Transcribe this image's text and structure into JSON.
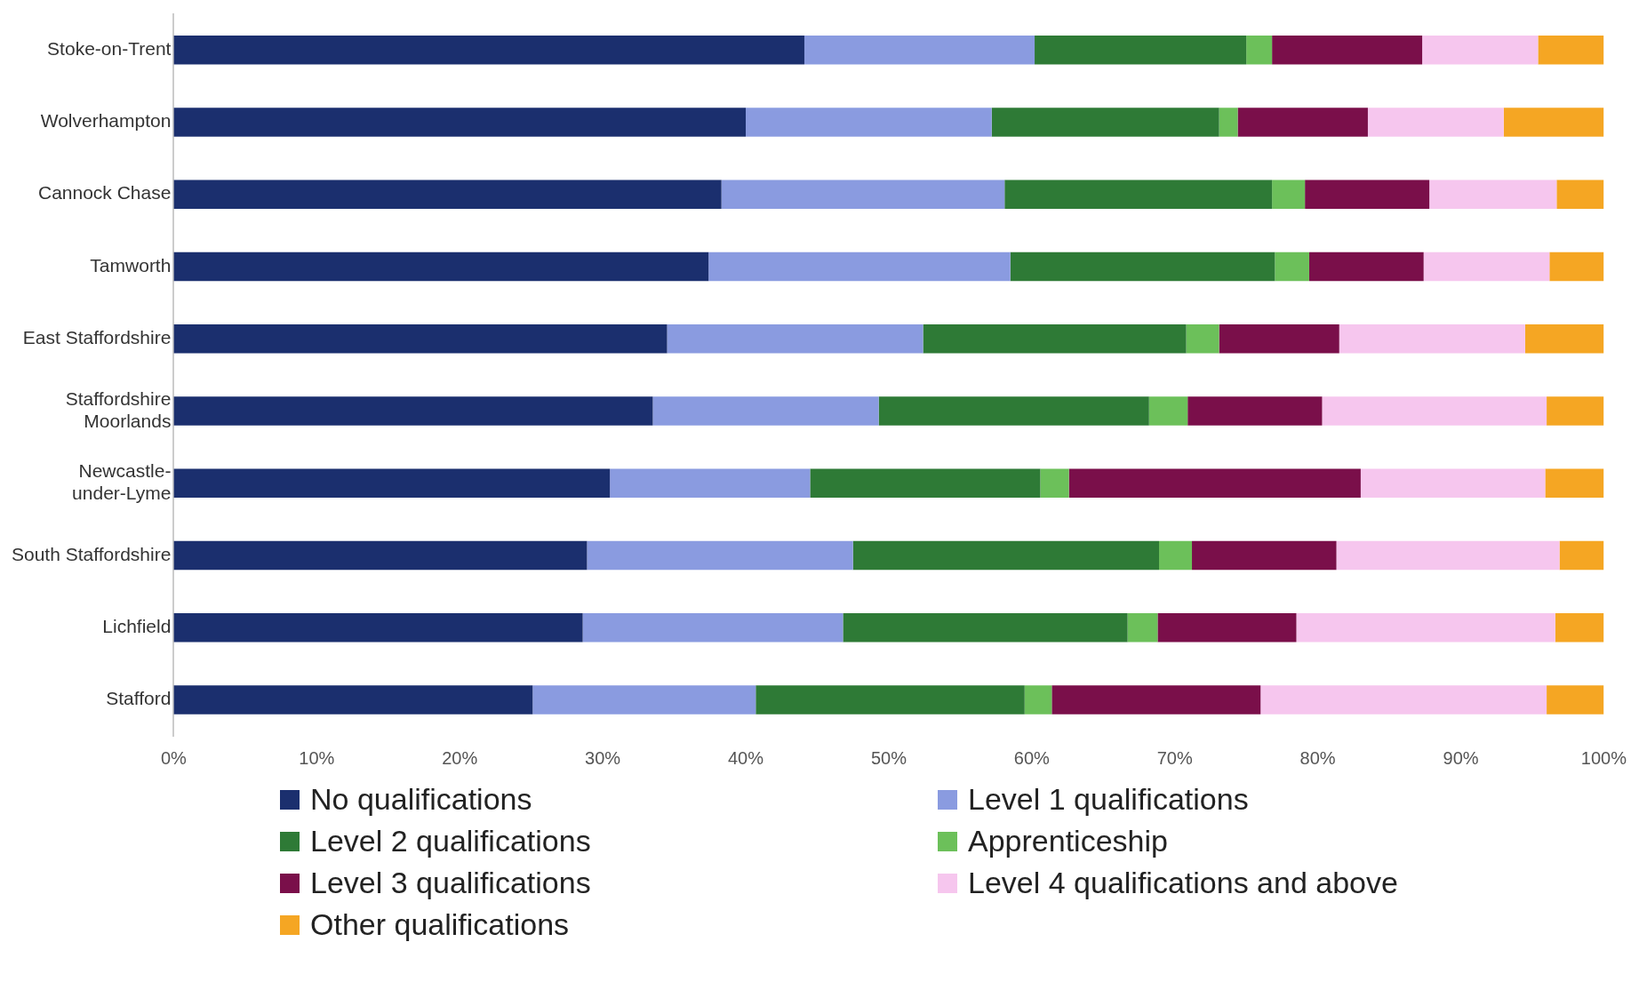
{
  "chart_data": {
    "type": "bar",
    "orientation": "horizontal",
    "stacked": true,
    "grid": false,
    "legend": "bottom",
    "categories": [
      "Stoke-on-Trent",
      "Wolverhampton",
      "Cannock Chase",
      "Tamworth",
      "East Staffordshire",
      "Staffordshire Moorlands",
      "Newcastle-under-Lyme",
      "South Staffordshire",
      "Lichfield",
      "Stafford"
    ],
    "xlim": [
      0,
      100
    ],
    "xticks": [
      {
        "value": 0,
        "label": "0%"
      },
      {
        "value": 10,
        "label": "10%"
      },
      {
        "value": 20,
        "label": "20%"
      },
      {
        "value": 30,
        "label": "30%"
      },
      {
        "value": 40,
        "label": "40%"
      },
      {
        "value": 50,
        "label": "50%"
      },
      {
        "value": 60,
        "label": "60%"
      },
      {
        "value": 70,
        "label": "70%"
      },
      {
        "value": 80,
        "label": "80%"
      },
      {
        "value": 90,
        "label": "90%"
      },
      {
        "value": 100,
        "label": "100%"
      }
    ],
    "series": [
      {
        "name": "No qualifications",
        "color": "#1b2f6e",
        "values": [
          44.1,
          40.0,
          38.3,
          37.4,
          34.5,
          33.5,
          30.5,
          28.9,
          28.6,
          25.1
        ]
      },
      {
        "name": "Level 1 qualifications",
        "color": "#8a9be0",
        "values": [
          16.1,
          17.2,
          19.8,
          21.1,
          17.9,
          15.8,
          14.0,
          18.6,
          18.2,
          15.6
        ]
      },
      {
        "name": "Level 2 qualifications",
        "color": "#2e7a36",
        "values": [
          14.8,
          15.9,
          18.7,
          18.5,
          18.4,
          18.9,
          16.1,
          21.4,
          19.9,
          18.8
        ]
      },
      {
        "name": "Apprenticeship",
        "color": "#6cc05a",
        "values": [
          1.8,
          1.3,
          2.3,
          2.4,
          2.3,
          2.7,
          2.0,
          2.3,
          2.1,
          1.9
        ]
      },
      {
        "name": "Level 3 qualifications",
        "color": "#7a0f4a",
        "values": [
          10.5,
          9.1,
          8.7,
          8.0,
          8.4,
          9.4,
          20.4,
          10.1,
          9.7,
          14.6
        ]
      },
      {
        "name": "Level 4 qualifications and above",
        "color": "#f6c6ee",
        "values": [
          8.1,
          9.5,
          8.9,
          8.8,
          13.0,
          15.7,
          12.9,
          15.6,
          18.1,
          20.0
        ]
      },
      {
        "name": "Other qualifications",
        "color": "#f5a623",
        "values": [
          4.6,
          7.0,
          3.3,
          3.8,
          5.5,
          4.0,
          4.1,
          3.1,
          3.4,
          4.0
        ]
      }
    ]
  }
}
